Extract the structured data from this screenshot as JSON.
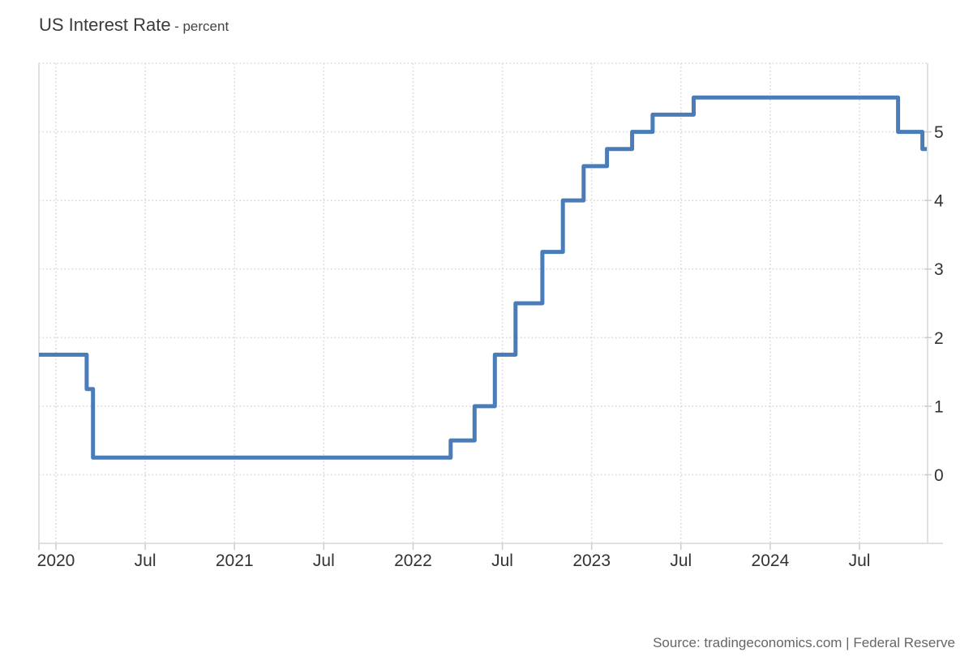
{
  "header": {
    "title": "US Interest Rate",
    "subtitle": "- percent"
  },
  "footer": {
    "source": "Source: tradingeconomics.com | Federal Reserve"
  },
  "chart_data": {
    "type": "line",
    "line_style": "step-after",
    "title": "US Interest Rate",
    "ylabel": "percent",
    "legend": "none",
    "grid": {
      "dotted": true,
      "color": "#d9d9d9"
    },
    "axis_line_color": "#e0e0e0",
    "tick_color": "#cccccc",
    "label_color": "#333333",
    "series": [
      {
        "name": "US Interest Rate (percent)",
        "color": "#4a7db8",
        "points": [
          {
            "date": "2019-12-01",
            "value": 1.75
          },
          {
            "date": "2020-03-03",
            "value": 1.25
          },
          {
            "date": "2020-03-16",
            "value": 0.25
          },
          {
            "date": "2022-03-17",
            "value": 0.5
          },
          {
            "date": "2022-05-05",
            "value": 1.0
          },
          {
            "date": "2022-06-16",
            "value": 1.75
          },
          {
            "date": "2022-07-28",
            "value": 2.5
          },
          {
            "date": "2022-09-22",
            "value": 3.25
          },
          {
            "date": "2022-11-03",
            "value": 4.0
          },
          {
            "date": "2022-12-15",
            "value": 4.5
          },
          {
            "date": "2023-02-02",
            "value": 4.75
          },
          {
            "date": "2023-03-23",
            "value": 5.0
          },
          {
            "date": "2023-05-04",
            "value": 5.25
          },
          {
            "date": "2023-07-27",
            "value": 5.5
          },
          {
            "date": "2024-09-19",
            "value": 5.0
          },
          {
            "date": "2024-11-08",
            "value": 4.75
          }
        ]
      }
    ],
    "x_axis": {
      "unit": "time",
      "ticks": [
        {
          "m": 0,
          "label": "2020"
        },
        {
          "m": 6,
          "label": "Jul"
        },
        {
          "m": 12,
          "label": "2021"
        },
        {
          "m": 18,
          "label": "Jul"
        },
        {
          "m": 24,
          "label": "2022"
        },
        {
          "m": 30,
          "label": "Jul"
        },
        {
          "m": 36,
          "label": "2023"
        },
        {
          "m": 42,
          "label": "Jul"
        },
        {
          "m": 48,
          "label": "2024"
        },
        {
          "m": 54,
          "label": "Jul"
        }
      ],
      "range": [
        "2019-11-26",
        "2024-11-18"
      ]
    },
    "y_axis": {
      "side": "right",
      "labels": [
        "0",
        "1",
        "2",
        "3",
        "4",
        "5"
      ],
      "tick_values": [
        0,
        1,
        2,
        3,
        4,
        5
      ],
      "gridline_values": [
        0,
        1,
        2,
        3,
        4,
        5,
        6
      ],
      "range": [
        -1,
        6
      ]
    }
  }
}
